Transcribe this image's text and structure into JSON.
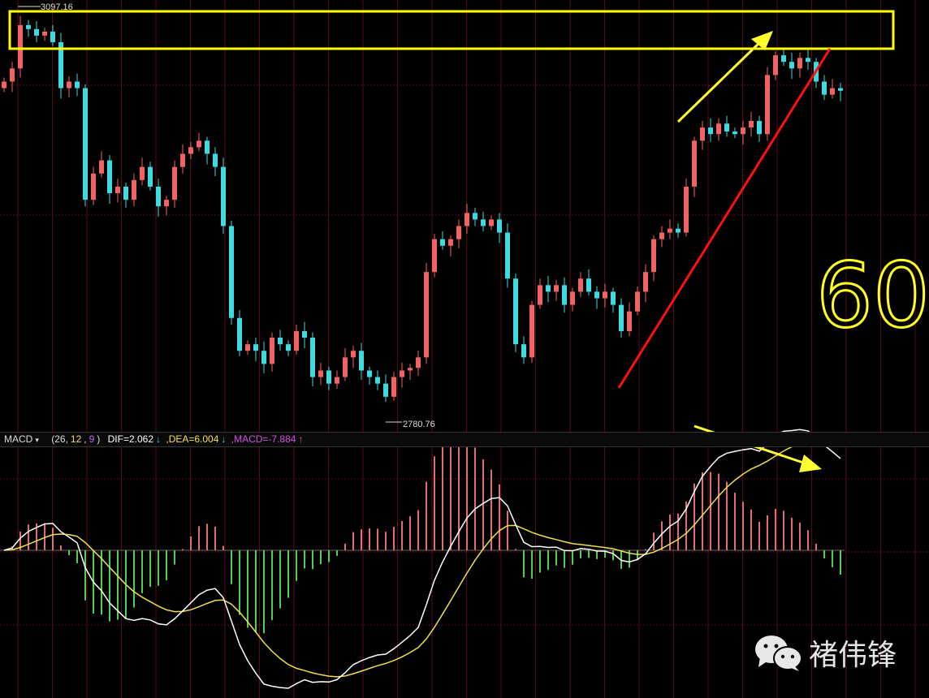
{
  "chart_data": {
    "type": "candlestick",
    "title": "",
    "price_labels": {
      "high": "3097.16",
      "low": "2780.76"
    },
    "ylim": [
      2780.76,
      3097.16
    ],
    "grid": true,
    "closes": [
      3040,
      3050,
      3083,
      3080,
      3075,
      3078,
      3070,
      3035,
      3040,
      3035,
      2950,
      2970,
      2980,
      2955,
      2960,
      2950,
      2965,
      2975,
      2960,
      2945,
      2950,
      2975,
      2985,
      2990,
      2995,
      2985,
      2975,
      2930,
      2860,
      2835,
      2840,
      2835,
      2825,
      2845,
      2840,
      2835,
      2850,
      2845,
      2815,
      2820,
      2810,
      2815,
      2830,
      2835,
      2820,
      2815,
      2810,
      2800,
      2815,
      2820,
      2822,
      2830,
      2895,
      2920,
      2915,
      2920,
      2930,
      2940,
      2935,
      2930,
      2935,
      2925,
      2890,
      2840,
      2830,
      2870,
      2885,
      2880,
      2885,
      2870,
      2880,
      2890,
      2880,
      2875,
      2880,
      2870,
      2850,
      2865,
      2880,
      2895,
      2920,
      2925,
      2928,
      2925,
      2960,
      2995,
      3005,
      3000,
      3008,
      3002,
      3000,
      3005,
      3010,
      3000,
      3045,
      3060,
      3055,
      3050,
      3058,
      3055,
      3040,
      3030,
      3035,
      3033
    ],
    "colors": {
      "up": "#f06464",
      "down": "#3fd9e0",
      "dif": "#ffffff",
      "dea": "#f0e050",
      "macd_pos": "#e07070",
      "macd_neg": "#50d050",
      "grid": "#5a0a14"
    }
  },
  "macd_header": {
    "name": "MACD",
    "params_open": "(26,",
    "param_12": "12",
    "param_9": "9",
    "params_close": ")",
    "dif": "DIF=2.062",
    "dea": ",DEA=6.004",
    "macd": ",MACD=-7.884",
    "arrow_down": "↓",
    "arrow_up": "↑"
  },
  "annotation": {
    "handwritten": "60"
  },
  "watermark": {
    "text": "褚伟锋"
  }
}
